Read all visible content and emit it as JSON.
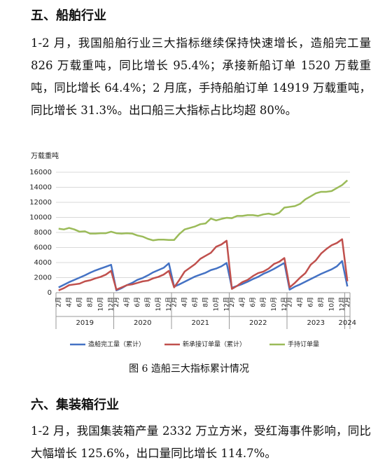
{
  "document": {
    "heading1": "五、船舶行业",
    "paragraph1": "1-2 月，我国船舶行业三大指标继续保持快速增长，造船完工量 826 万载重吨，同比增长 95.4%；承接新船订单 1520 万载重吨，同比增长 64.4%；2 月底，手持船舶订单 14919 万载重吨，同比增长 31.3%。出口船三大指标占比均超 80%。",
    "caption": "图 6  造船三大指标累计情况",
    "heading2": "六、集装箱行业",
    "paragraph2": "1-2 月，我国集装箱产量 2332 万立方米，受红海事件影响，同比大幅增长 125.6%，出口量同比增长 114.7%。"
  },
  "chart_data": {
    "type": "line",
    "y_label": "万载重吨",
    "categories": [
      "2月",
      null,
      "4月",
      null,
      "6月",
      null,
      "8月",
      null,
      "10月",
      null,
      "12月",
      "2月",
      null,
      "4月",
      null,
      "6月",
      null,
      "8月",
      null,
      "10月",
      null,
      "12月",
      "2月",
      null,
      "4月",
      null,
      "6月",
      null,
      "8月",
      null,
      "10月",
      null,
      "12月",
      "2月",
      null,
      "4月",
      null,
      "6月",
      null,
      "8月",
      null,
      "10月",
      null,
      "12月",
      "2月",
      null,
      "4月",
      null,
      "6月",
      null,
      "8月",
      null,
      "10月",
      null,
      "12月",
      "2月"
    ],
    "years": [
      "2019",
      "2020",
      "2021",
      "2022",
      "2023",
      "2024"
    ],
    "ylim": [
      0,
      16000
    ],
    "yticks": [
      0,
      2000,
      4000,
      6000,
      8000,
      10000,
      12000,
      14000,
      16000
    ],
    "grid": true,
    "legend": "bottom",
    "series": [
      {
        "name": "造船完工量（累计）",
        "color": "#4472c4",
        "values": [
          700,
          1050,
          1400,
          1700,
          2000,
          2300,
          2650,
          2950,
          3200,
          3450,
          3700,
          300,
          600,
          1000,
          1300,
          1700,
          1950,
          2300,
          2700,
          3000,
          3300,
          3900,
          800,
          1100,
          1450,
          1800,
          2150,
          2400,
          2650,
          3000,
          3200,
          3500,
          3950,
          650,
          900,
          1150,
          1450,
          1800,
          2100,
          2500,
          2800,
          3150,
          3550,
          3950,
          400,
          800,
          1100,
          1450,
          1800,
          2150,
          2500,
          2800,
          3100,
          3500,
          4200,
          826
        ]
      },
      {
        "name": "新承接订单量（累计）",
        "color": "#c0504d",
        "values": [
          300,
          600,
          1000,
          1100,
          1200,
          1500,
          1650,
          1900,
          2100,
          2400,
          2900,
          400,
          700,
          1000,
          1100,
          1300,
          1500,
          1600,
          1900,
          2100,
          2400,
          2900,
          700,
          1700,
          2800,
          3300,
          3800,
          4500,
          4900,
          5300,
          6100,
          6400,
          6900,
          500,
          900,
          1400,
          1700,
          2200,
          2600,
          2800,
          3200,
          3800,
          4100,
          4600,
          700,
          1300,
          2000,
          2600,
          3700,
          4300,
          5200,
          5800,
          6300,
          6600,
          7100,
          1520
        ]
      },
      {
        "name": "手持订单量",
        "color": "#9bbb59",
        "values": [
          8500,
          8400,
          8600,
          8400,
          8100,
          8150,
          7850,
          7850,
          7900,
          7900,
          8100,
          7900,
          7850,
          7900,
          7850,
          7600,
          7450,
          7150,
          6950,
          7050,
          7050,
          7000,
          7000,
          7800,
          8400,
          8600,
          8800,
          9100,
          9200,
          9850,
          9600,
          9800,
          9950,
          9900,
          10200,
          10200,
          10300,
          10300,
          10200,
          10400,
          10500,
          10350,
          10600,
          11300,
          11400,
          11500,
          11800,
          12400,
          12800,
          13200,
          13400,
          13400,
          13500,
          13900,
          14300,
          14919
        ]
      }
    ]
  }
}
